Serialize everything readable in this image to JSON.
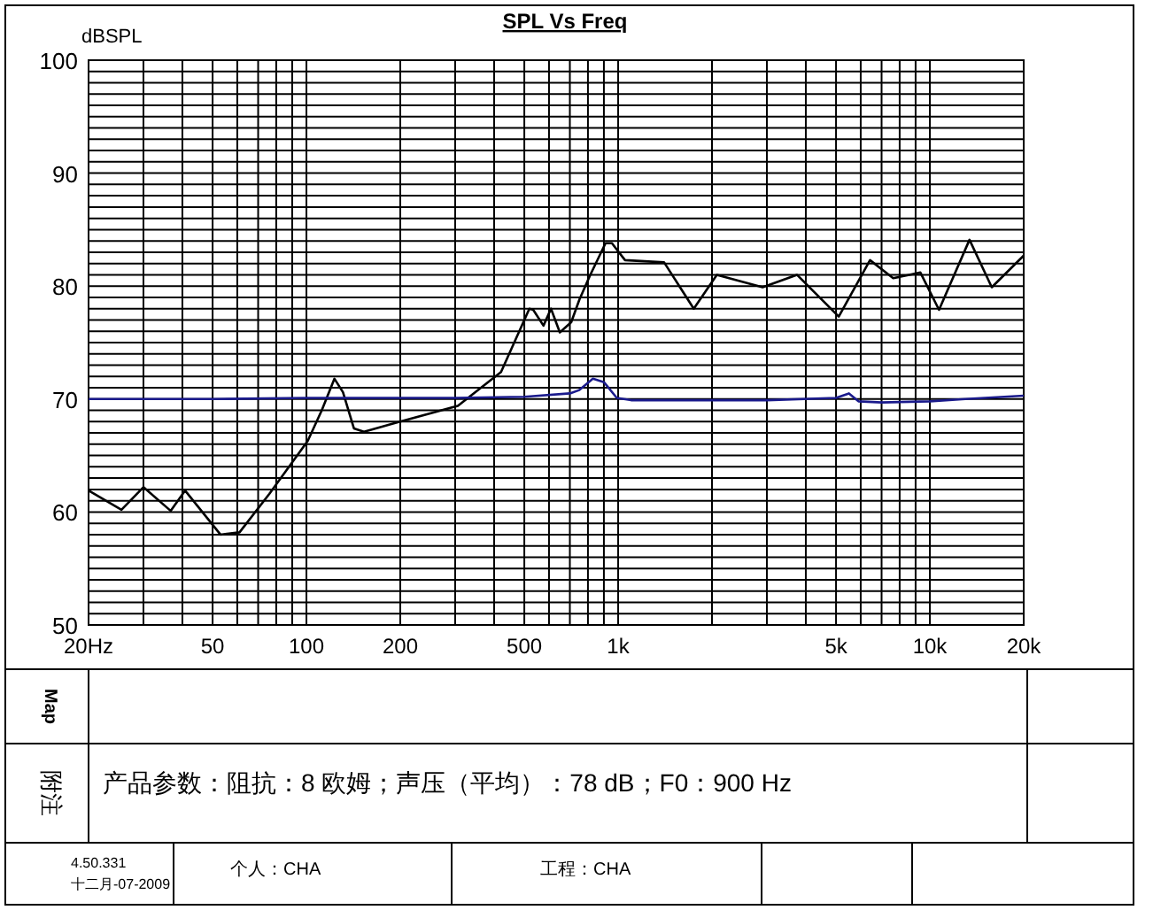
{
  "chart_data": {
    "type": "line",
    "title": "SPL Vs Freq",
    "ylabel": "dBSPL",
    "log": "x",
    "grid": true,
    "marker": "none",
    "line_style": "solid",
    "xlim": [
      20,
      20000
    ],
    "ylim": [
      50,
      100
    ],
    "xticks": [
      {
        "value": 20,
        "label": "20Hz"
      },
      50,
      100,
      200,
      500,
      {
        "value": 1000,
        "label": "1k"
      },
      {
        "value": 5000,
        "label": "5k"
      },
      {
        "value": 10000,
        "label": "10k"
      },
      {
        "value": 20000,
        "label": "20k"
      }
    ],
    "yticks": [
      50,
      60,
      70,
      80,
      90,
      100
    ],
    "series": [
      {
        "color": "#000000",
        "x": [
          20,
          25.5,
          30,
          36.7,
          40.8,
          53,
          61,
          76,
          101,
          112,
          123,
          131,
          142,
          153,
          194,
          306,
          421,
          519,
          534,
          576,
          609,
          650,
          707,
          751,
          814,
          911,
          955,
          1052,
          1404,
          1748,
          2073,
          2907,
          3746,
          5101,
          6426,
          7626,
          9323,
          10700,
          13400,
          15800,
          20000
        ],
        "values": [
          61.9,
          60.2,
          62.2,
          60.1,
          61.9,
          58.0,
          58.2,
          61.6,
          66.3,
          69.0,
          71.8,
          70.6,
          67.4,
          67.1,
          67.9,
          69.4,
          72.4,
          78.0,
          77.9,
          76.5,
          78.0,
          75.9,
          76.8,
          78.8,
          81.0,
          83.8,
          83.8,
          82.3,
          82.1,
          78.0,
          81.0,
          79.9,
          81.0,
          77.3,
          82.3,
          80.7,
          81.2,
          77.9,
          84.1,
          79.9,
          82.7
        ]
      },
      {
        "color": "#1a1a8c",
        "x": [
          20,
          50,
          100,
          300,
          500,
          700,
          751,
          830,
          900,
          990,
          1100,
          3000,
          5000,
          5500,
          5900,
          7000,
          10000,
          13000,
          20000
        ],
        "values": [
          70.0,
          70.0,
          70.1,
          70.1,
          70.2,
          70.5,
          70.8,
          71.8,
          71.5,
          70.1,
          69.9,
          69.9,
          70.1,
          70.5,
          69.8,
          69.7,
          69.8,
          70.0,
          70.3
        ]
      }
    ],
    "annotations": [
      "Map",
      "附注",
      "产品参数：阻抗：8 欧姆；声压（平均）：78 dB；F0：900 Hz",
      "4.50.331",
      "十二月-07-2009",
      "个人：CHA",
      "工程：CHA"
    ]
  }
}
